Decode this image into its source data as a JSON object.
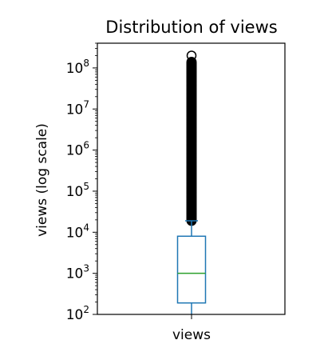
{
  "chart_data": {
    "type": "box",
    "title": "Distribution of views",
    "xlabel": "",
    "ylabel": "views (log scale)",
    "categories": [
      "views"
    ],
    "yscale": "log",
    "ylim": [
      100,
      400000000
    ],
    "yticks": [
      {
        "value": 100,
        "base": "10",
        "exp": "2"
      },
      {
        "value": 1000,
        "base": "10",
        "exp": "3"
      },
      {
        "value": 10000,
        "base": "10",
        "exp": "4"
      },
      {
        "value": 100000,
        "base": "10",
        "exp": "5"
      },
      {
        "value": 1000000,
        "base": "10",
        "exp": "6"
      },
      {
        "value": 10000000,
        "base": "10",
        "exp": "7"
      },
      {
        "value": 100000000,
        "base": "10",
        "exp": "8"
      }
    ],
    "box": {
      "whisker_low": 100,
      "q1": 190,
      "median": 1000,
      "q3": 8000,
      "whisker_high": 19000,
      "outlier_range": [
        19000,
        140000000
      ],
      "max_outlier": 200000000
    },
    "grid": false,
    "colors": {
      "box": "#1f77b4",
      "median": "#2ca02c",
      "outliers": "#000000"
    }
  }
}
